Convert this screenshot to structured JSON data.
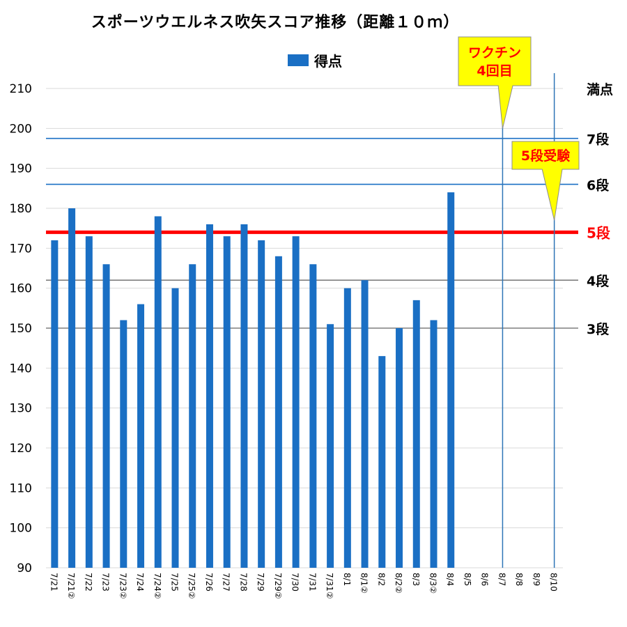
{
  "chart_data": {
    "type": "bar",
    "title": "スポーツウエルネス吹矢スコア推移（距離１０ｍ）",
    "legend": "得点",
    "legend_position": "top",
    "categories": [
      "7/21",
      "7/21②",
      "7/22",
      "7/23",
      "7/23②",
      "7/24",
      "7/24②",
      "7/25",
      "7/25②",
      "7/26",
      "7/27",
      "7/28",
      "7/29",
      "7/29②",
      "7/30",
      "7/31",
      "7/31②",
      "8/1",
      "8/1②",
      "8/2",
      "8/2②",
      "8/3",
      "8/3②",
      "8/4",
      "8/5",
      "8/6",
      "8/7",
      "8/8",
      "8/9",
      "8/10"
    ],
    "series": [
      {
        "name": "得点",
        "color": "#1a6fc4",
        "values": [
          172,
          180,
          173,
          166,
          152,
          156,
          178,
          160,
          166,
          176,
          173,
          176,
          172,
          168,
          173,
          166,
          151,
          160,
          162,
          143,
          150,
          157,
          152,
          184,
          null,
          null,
          null,
          null,
          null,
          null
        ]
      }
    ],
    "ylim": [
      90,
      210
    ],
    "yticks": [
      90,
      100,
      110,
      120,
      130,
      140,
      150,
      160,
      170,
      180,
      190,
      200,
      210
    ],
    "grid": true,
    "reference_lines": [
      {
        "label": "満点",
        "value": 210,
        "color": "#d9d9d9",
        "label_color": "#000000"
      },
      {
        "label": "7段",
        "value": 197.5,
        "color": "#1a6fc4",
        "label_color": "#000000"
      },
      {
        "label": "6段",
        "value": 186,
        "color": "#1a6fc4",
        "label_color": "#000000"
      },
      {
        "label": "5段",
        "value": 174,
        "color": "#ff0000",
        "label_color": "#ff0000"
      },
      {
        "label": "4段",
        "value": 162,
        "color": "#7f7f7f",
        "label_color": "#000000"
      },
      {
        "label": "3段",
        "value": 150,
        "color": "#7f7f7f",
        "label_color": "#000000"
      }
    ],
    "event_lines": [
      {
        "category": "8/7",
        "label_lines": [
          "ワクチン",
          "4回目"
        ],
        "color": "#2e75b6",
        "callout_fill": "#ffff00",
        "callout_text_color": "#ff0000",
        "pointer_value": 200
      },
      {
        "category": "8/10",
        "label_lines": [
          "5段受験"
        ],
        "color": "#2e75b6",
        "callout_fill": "#ffff00",
        "callout_text_color": "#ff0000",
        "pointer_value": 177
      }
    ]
  }
}
